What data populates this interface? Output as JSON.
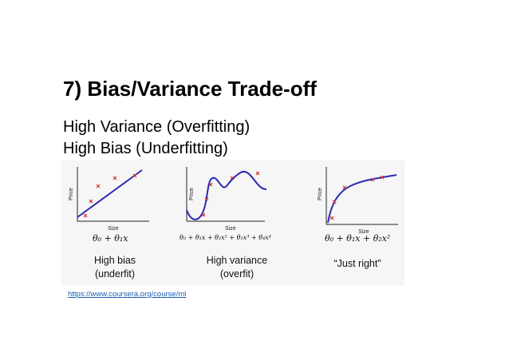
{
  "slide": {
    "title": "7) Bias/Variance Trade-off",
    "line1": "High Variance (Overfitting)",
    "line2": "High Bias (Underfitting)",
    "link": "https://www.coursera.org/course/ml"
  },
  "panels": [
    {
      "ylabel": "Price",
      "xlabel": "Size",
      "formula": "θ₀ + θ₁x",
      "caption_line1": "High bias",
      "caption_line2": "(underfit)"
    },
    {
      "ylabel": "Price",
      "xlabel": "Size",
      "formula": "θ₀ + θ₁x + θ₂x² + θ₃x³ + θ₄x⁴",
      "caption_line1": "High variance",
      "caption_line2": "(overfit)"
    },
    {
      "ylabel": "Price",
      "xlabel": "Size",
      "formula": "θ₀ + θ₁x + θ₂x²",
      "caption_line1": "“Just right”",
      "caption_line2": ""
    }
  ],
  "colors": {
    "curve": "#2a2ab8",
    "point": "#d23030",
    "axis": "#222222",
    "link": "#1a5fb4"
  }
}
